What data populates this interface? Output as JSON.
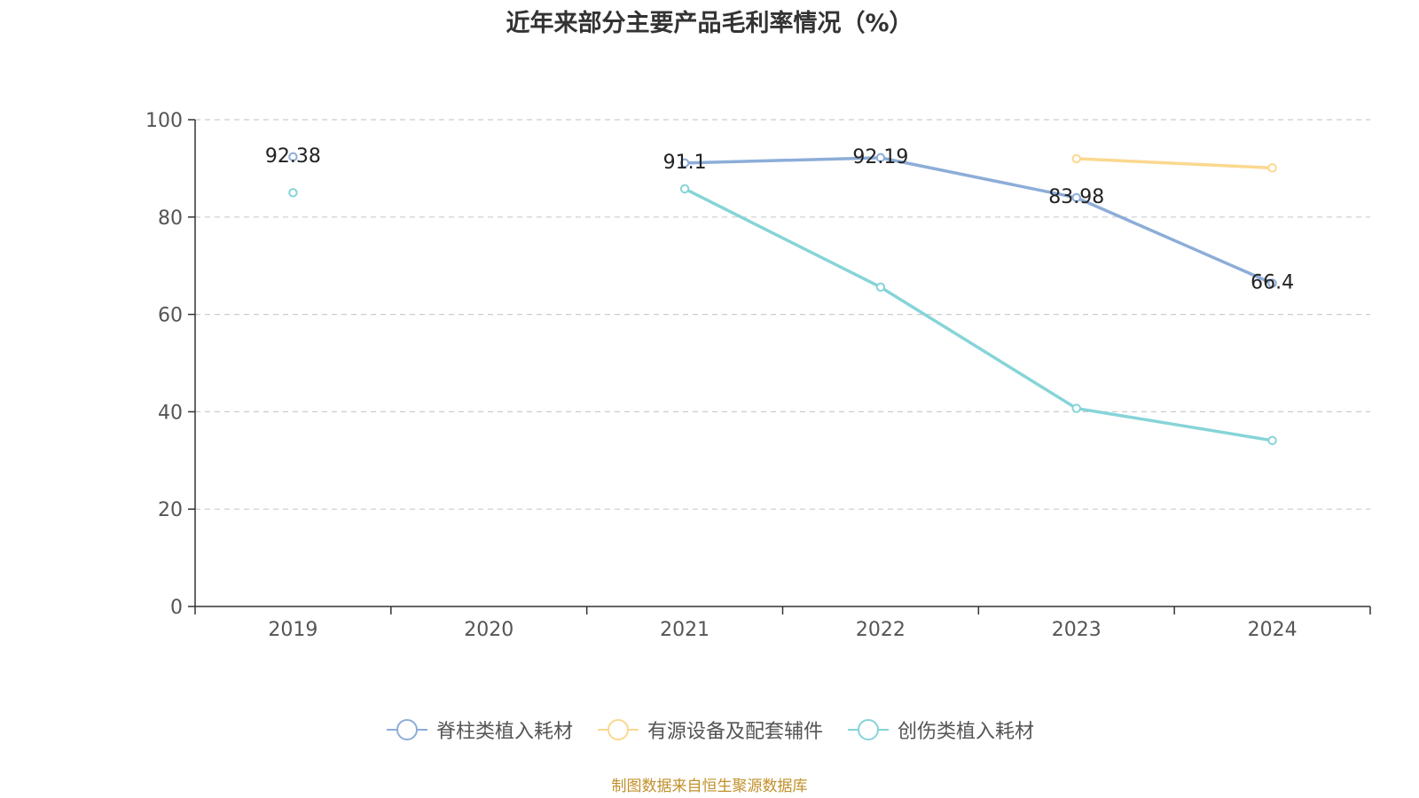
{
  "chart_data": {
    "type": "line",
    "title": "近年来部分主要产品毛利率情况（%）",
    "categories": [
      "2019",
      "2020",
      "2021",
      "2022",
      "2023",
      "2024"
    ],
    "ylim": [
      0,
      100
    ],
    "yticks": [
      0,
      20,
      40,
      60,
      80,
      100
    ],
    "grid": true,
    "legend_position": "bottom",
    "series": [
      {
        "name": "脊柱类植入耗材",
        "color": "#8dadd8",
        "values": [
          92.38,
          null,
          91.1,
          92.19,
          83.98,
          66.4
        ],
        "labels": [
          "92.38",
          null,
          "91.1",
          "92.19",
          "83.98",
          "66.4"
        ]
      },
      {
        "name": "有源设备及配套辅件",
        "color": "#fbd88f",
        "values": [
          null,
          null,
          null,
          null,
          92.0,
          90.1
        ],
        "labels": [
          null,
          null,
          null,
          null,
          null,
          null
        ]
      },
      {
        "name": "创伤类植入耗材",
        "color": "#86d4d8",
        "values": [
          85.0,
          null,
          85.8,
          65.6,
          40.7,
          34.1
        ],
        "labels": [
          null,
          null,
          null,
          null,
          null,
          null
        ]
      }
    ]
  },
  "source_note": "制图数据来自恒生聚源数据库"
}
